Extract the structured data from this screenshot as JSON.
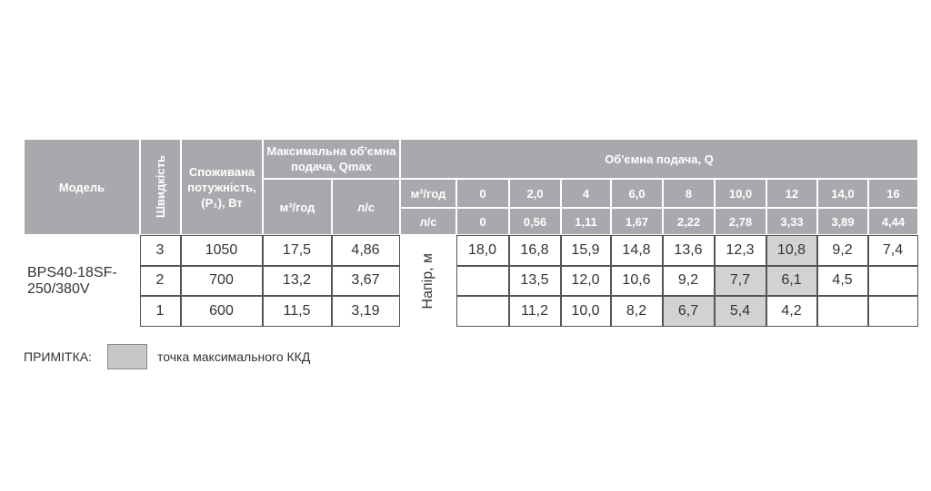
{
  "table": {
    "header": {
      "model": "Модель",
      "speed": "Швидкість",
      "power": "Споживана потужність, (P₁), Вт",
      "qmax": "Максимальна об'ємна подача, Qmax",
      "qmax_m3": "м³/год",
      "qmax_ls": "л/с",
      "flow": "Об'ємна подача, Q",
      "flow_m3_label": "м³/год",
      "flow_ls_label": "л/с",
      "head_label": "Напір, м"
    },
    "flow_m3": [
      "0",
      "2,0",
      "4",
      "6,0",
      "8",
      "10,0",
      "12",
      "14,0",
      "16"
    ],
    "flow_ls": [
      "0",
      "0,56",
      "1,11",
      "1,67",
      "2,22",
      "2,78",
      "3,33",
      "3,89",
      "4,44"
    ],
    "model": "BPS40-18SF-250/380V",
    "rows": [
      {
        "speed": "3",
        "power": "1050",
        "qmax_m3": "17,5",
        "qmax_ls": "4,86",
        "heads": [
          "18,0",
          "16,8",
          "15,9",
          "14,8",
          "13,6",
          "12,3",
          "10,8",
          "9,2",
          "7,4"
        ]
      },
      {
        "speed": "2",
        "power": "700",
        "qmax_m3": "13,2",
        "qmax_ls": "3,67",
        "heads": [
          null,
          "13,5",
          "12,0",
          "10,6",
          "9,2",
          "7,7",
          "6,1",
          "4,5",
          null
        ]
      },
      {
        "speed": "1",
        "power": "600",
        "qmax_m3": "11,5",
        "qmax_ls": "3,19",
        "heads": [
          null,
          "11,2",
          "10,0",
          "8,2",
          "6,7",
          "5,4",
          "4,2",
          null,
          null
        ]
      }
    ]
  },
  "note": {
    "label": "ПРИМІТКА:",
    "text": "точка максимального ККД"
  }
}
